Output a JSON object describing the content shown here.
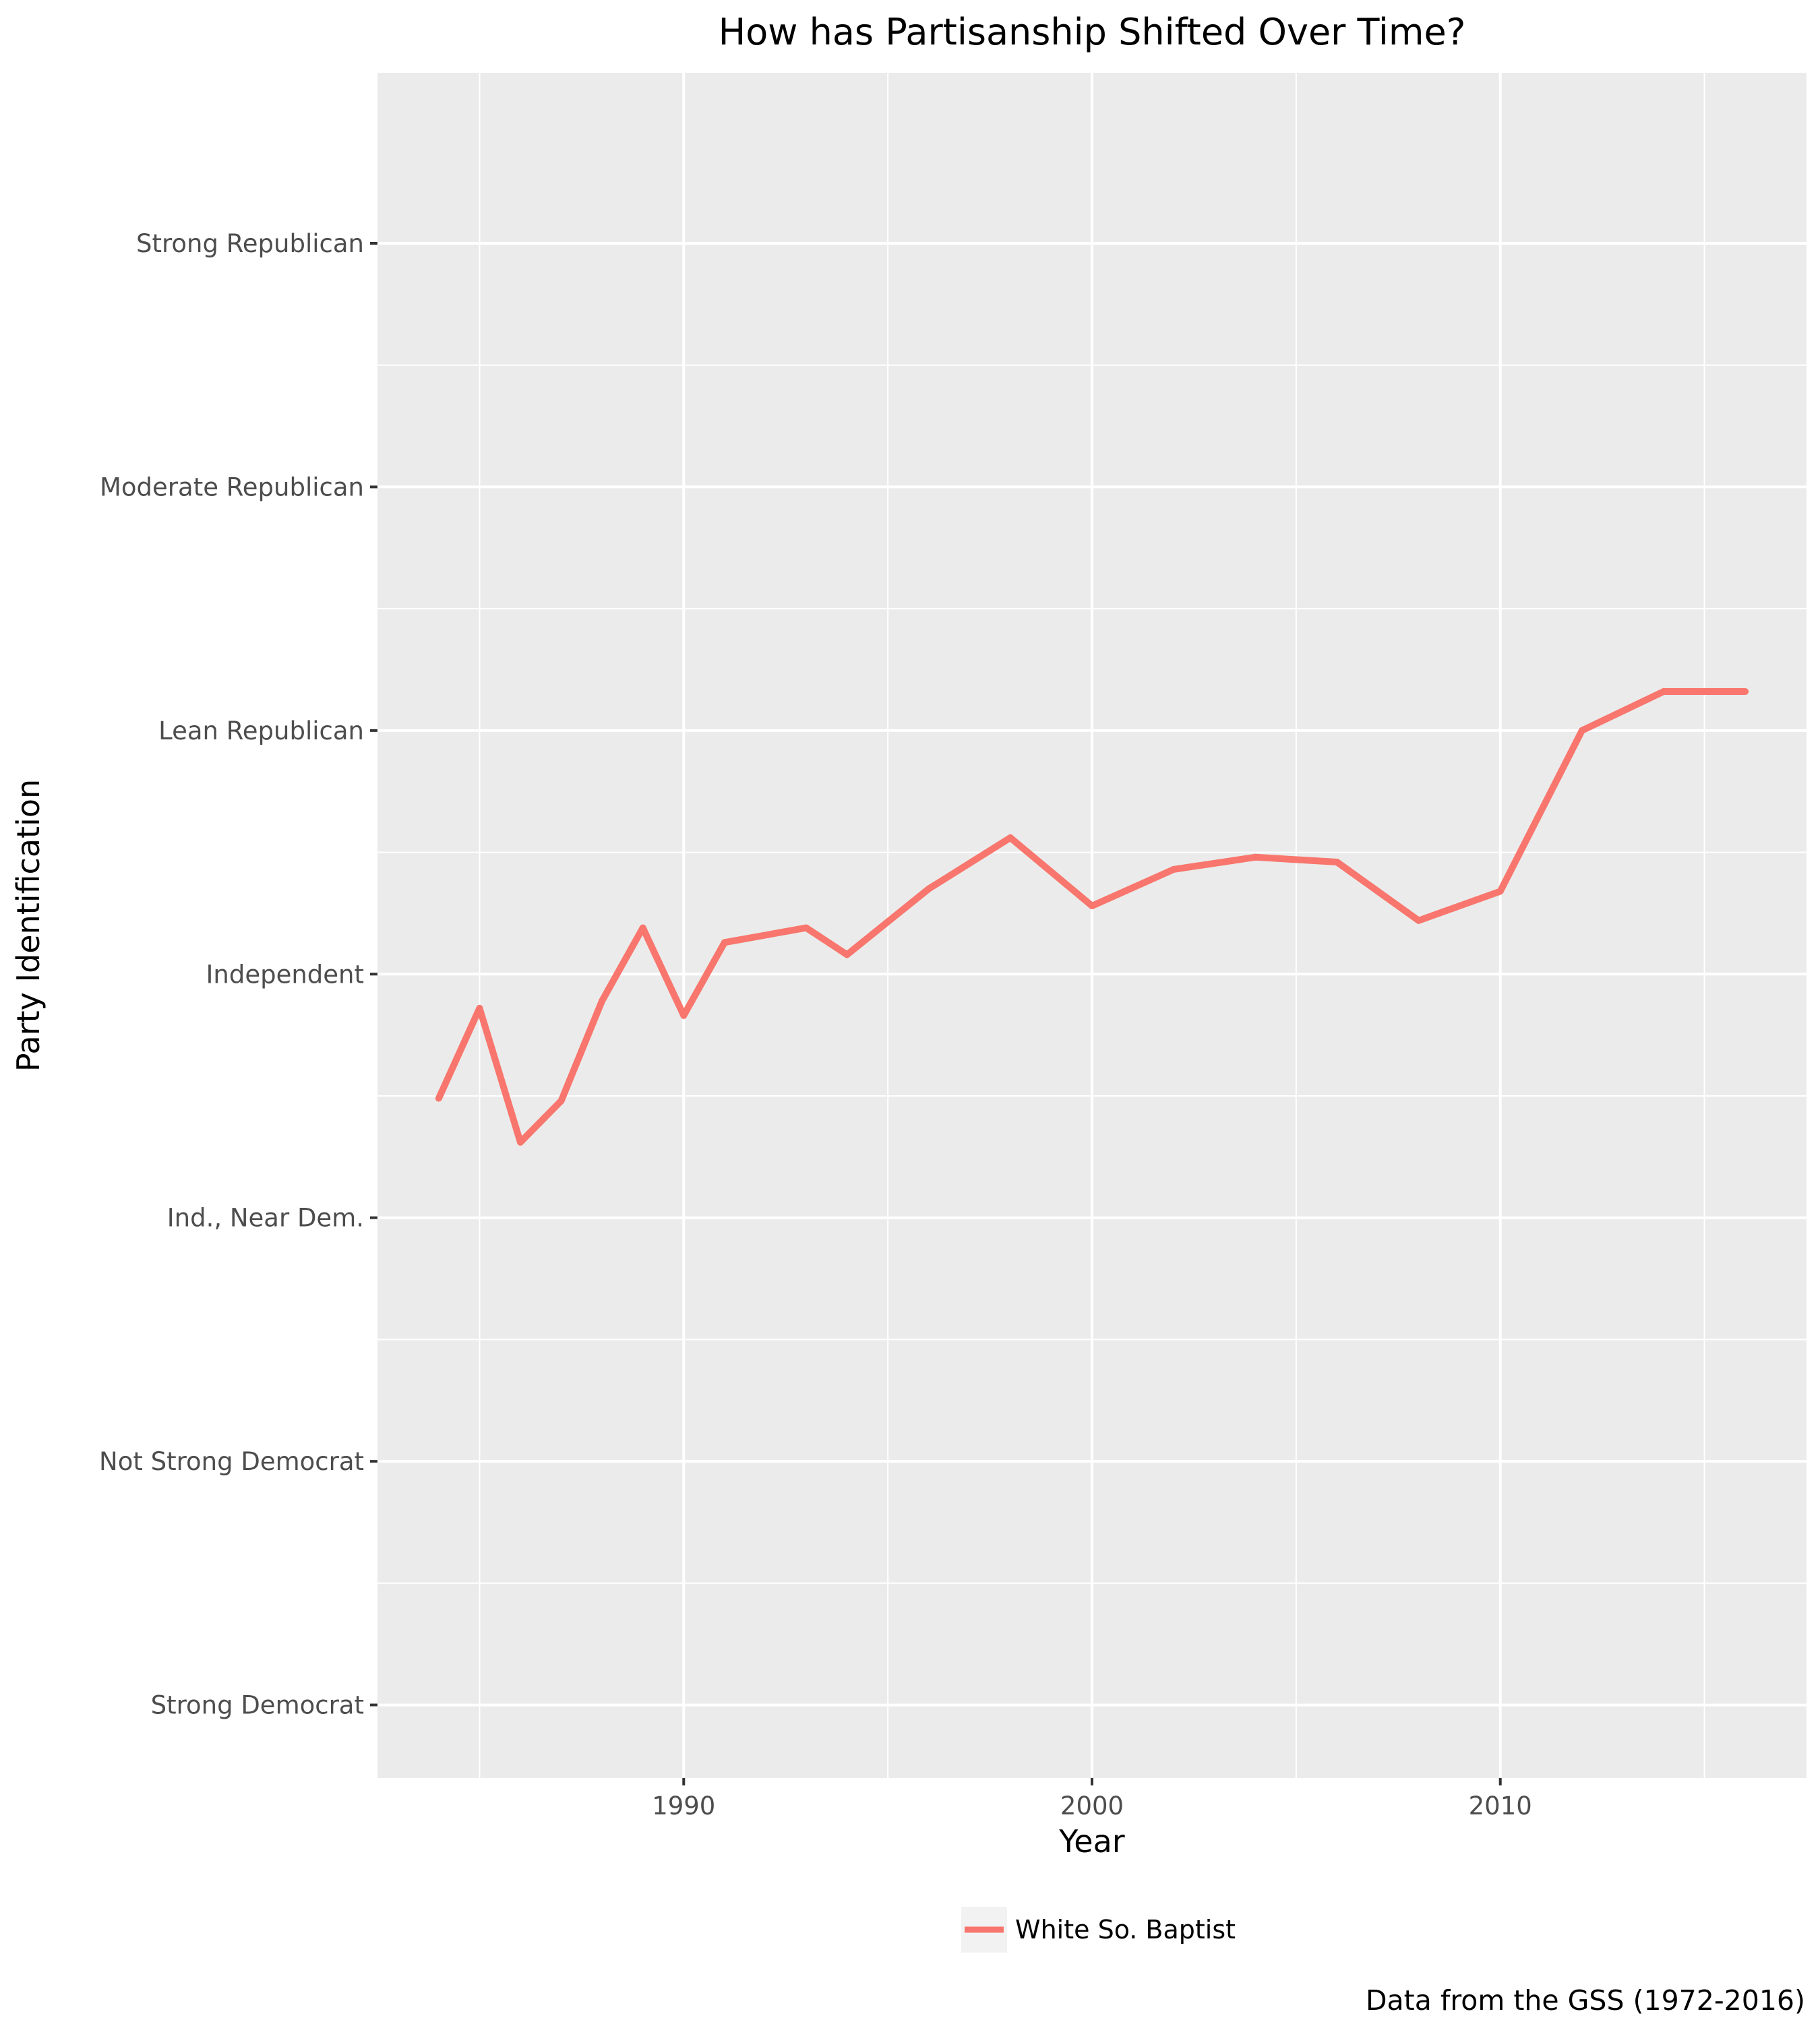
{
  "chart_data": {
    "type": "line",
    "title": "How has Partisanship Shifted Over Time?",
    "xlabel": "Year",
    "ylabel": "Party Identification",
    "caption": "Data from the GSS (1972-2016)",
    "xlim": [
      1982.5,
      2017.5
    ],
    "ylim": [
      -0.3,
      6.7
    ],
    "x_ticks": [
      {
        "value": 1990,
        "label": "1990"
      },
      {
        "value": 2000,
        "label": "2000"
      },
      {
        "value": 2010,
        "label": "2010"
      }
    ],
    "x_minor_ticks": [
      1985,
      1995,
      2005,
      2015
    ],
    "y_ticks": [
      {
        "value": 0,
        "label": "Strong Democrat"
      },
      {
        "value": 1,
        "label": "Not Strong Democrat"
      },
      {
        "value": 2,
        "label": "Ind., Near Dem."
      },
      {
        "value": 3,
        "label": "Independent"
      },
      {
        "value": 4,
        "label": "Lean Republican"
      },
      {
        "value": 5,
        "label": "Moderate Republican"
      },
      {
        "value": 6,
        "label": "Strong Republican"
      }
    ],
    "y_minor_ticks": [
      0.5,
      1.5,
      2.5,
      3.5,
      4.5,
      5.5
    ],
    "grid": true,
    "legend_position": "bottom",
    "series": [
      {
        "name": "White So. Baptist",
        "color": "#F8766D",
        "x": [
          1984,
          1985,
          1986,
          1987,
          1988,
          1989,
          1990,
          1991,
          1993,
          1994,
          1996,
          1998,
          2000,
          2002,
          2004,
          2006,
          2008,
          2010,
          2012,
          2014,
          2016
        ],
        "values": [
          2.49,
          2.86,
          2.31,
          2.48,
          2.89,
          3.19,
          2.83,
          3.13,
          3.19,
          3.08,
          3.35,
          3.56,
          3.28,
          3.43,
          3.48,
          3.46,
          3.22,
          3.34,
          4.0,
          4.16,
          4.16
        ]
      }
    ]
  }
}
